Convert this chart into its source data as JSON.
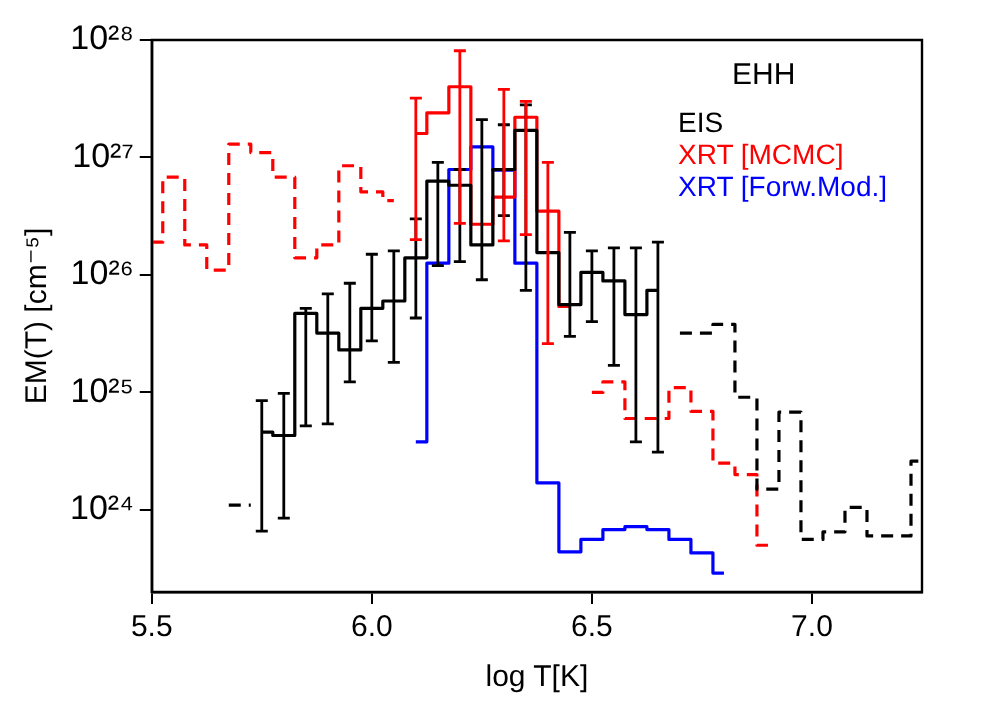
{
  "chart_data": {
    "type": "step",
    "xlabel": "log T[K]",
    "ylabel": "EM(T) [cm⁻⁵]",
    "annotations": [
      "EHH"
    ],
    "log": "y",
    "grid": false,
    "legend": "top right",
    "marker": "none",
    "xlim": [
      5.5,
      7.25
    ],
    "xticks": [
      5.5,
      {
        "value": 6,
        "label": "6.0"
      },
      6.5,
      {
        "value": 7,
        "label": "7.0"
      }
    ],
    "ylim": [
      2e+23,
      1e+28
    ],
    "yticks": [
      {
        "value": 1e+24,
        "label": "10²⁴"
      },
      {
        "value": 1e+25,
        "label": "10²⁵"
      },
      {
        "value": 1e+26,
        "label": "10²⁶"
      },
      {
        "value": 1e+27,
        "label": "10²⁷"
      },
      {
        "value": 1e+28,
        "label": "10²⁸"
      }
    ],
    "series": [
      {
        "name": "EIS",
        "color": "#000000",
        "line_style": "solid",
        "x": [
          5.75,
          5.8,
          5.85,
          5.9,
          5.95,
          6.0,
          6.05,
          6.1,
          6.15,
          6.2,
          6.25,
          6.3,
          6.35,
          6.4,
          6.45,
          6.5,
          6.55,
          6.6,
          6.65
        ],
        "values": [
          4.6e+24,
          4.3e+24,
          4.7e+25,
          3.2e+25,
          2.3e+25,
          5.2e+25,
          6e+25,
          1.4e+26,
          6.3e+26,
          5.8e+26,
          1.8e+26,
          7.9e+26,
          1.7e+27,
          1.55e+26,
          5.6e+25,
          1.05e+26,
          8.9e+25,
          4.6e+25,
          7.4e+25
        ],
        "errors": [
          [
            6.6e+23,
            8.5e+24
          ],
          [
            8.5e+23,
            9.8e+24
          ],
          [
            5.2e+24,
            5.2e+25
          ],
          [
            5.4e+24,
            6.9e+25
          ],
          [
            1.23e+25,
            8.5e+25
          ],
          [
            2.75e+25,
            1.5e+26
          ],
          [
            1.8e+25,
            1.6e+26
          ],
          [
            4.3e+25,
            3e+26
          ],
          [
            1.2e+26,
            9.1e+26
          ],
          [
            1.3e+26,
            7.9e+26
          ],
          [
            9.1e+25,
            2.1e+27
          ],
          [
            3.2e+26,
            1.9e+27
          ],
          [
            7.4e+25,
            2.8e+27
          ],
          null,
          [
            3e+25,
            2.3e+26
          ],
          [
            4e+25,
            1.6e+26
          ],
          [
            1.7e+25,
            1.7e+26
          ],
          [
            3.8e+24,
            1.7e+26
          ],
          [
            3.1e+24,
            1.9e+26
          ]
        ]
      },
      {
        "type": "line",
        "color": "#000000",
        "line_style": "dashed",
        "x": [
          5.675,
          5.725
        ],
        "values": [
          1.1e+24,
          1.1e+24
        ]
      },
      {
        "color": "#000000",
        "line_style": "dashed",
        "x": [
          6.7,
          6.75,
          6.8,
          6.85,
          6.9,
          6.95,
          7.0,
          7.05,
          7.1,
          7.15,
          7.2,
          7.25
        ],
        "values": [
          3.2e+25,
          3.2e+25,
          3.8e+25,
          9.1e+24,
          1.5e+24,
          6.8e+24,
          5.6e+23,
          6.5e+23,
          1.05e+24,
          6e+23,
          6e+23,
          2.6e+24
        ]
      },
      {
        "name": "XRT [MCMC]",
        "color": "#ff0000",
        "line_style": "solid",
        "x": [
          6.1,
          6.15,
          6.2,
          6.25,
          6.3,
          6.35,
          6.4,
          6.45
        ],
        "values": [
          1.6e+27,
          2.4e+27,
          4e+27,
          2.7e+26,
          4.6e+26,
          2.2e+27,
          3.5e+26,
          5.4e+25
        ],
        "errors": [
          [
            2e+26,
            3.2e+27
          ],
          null,
          [
            2.75e+26,
            8.1e+27
          ],
          null,
          [
            1.95e+26,
            3.8e+27
          ],
          [
            2.2e+26,
            3e+27
          ],
          [
            2.6e+25,
            9.1e+26
          ],
          null
        ]
      },
      {
        "color": "#ff0000",
        "line_style": "dashed",
        "x": [
          5.5,
          5.55,
          5.6,
          5.65,
          5.7,
          5.75,
          5.8,
          5.85,
          5.9,
          5.95,
          6.0,
          6.05
        ],
        "values": [
          1.9e+26,
          6.8e+26,
          1.8e+26,
          1.1e+26,
          1.3e+27,
          1.1e+27,
          6.8e+26,
          1.4e+26,
          1.8e+26,
          8.5e+26,
          5.1e+26,
          4.3e+26
        ]
      },
      {
        "color": "#ff0000",
        "line_style": "dashed",
        "x": [
          6.5,
          6.55,
          6.6,
          6.65,
          6.7,
          6.75,
          6.8,
          6.85,
          6.9
        ],
        "values": [
          1e+25,
          1.23e+25,
          6e+24,
          6e+24,
          1.1e+25,
          6.9e+24,
          2.5e+24,
          2e+24,
          5e+23
        ]
      },
      {
        "name": "XRT [Forw.Mod.]",
        "color": "#0000ff",
        "line_style": "solid",
        "x": [
          6.1,
          6.15,
          6.2,
          6.25,
          6.3,
          6.35,
          6.4,
          6.45,
          6.5,
          6.55,
          6.6,
          6.65,
          6.7,
          6.75,
          6.8
        ],
        "values": [
          3.8e+24,
          1.26e+26,
          7.9e+26,
          1.23e+27,
          7.8e+26,
          1.26e+26,
          1.7e+24,
          4.4e+23,
          5.6e+23,
          6.8e+23,
          7.2e+23,
          6.8e+23,
          5.6e+23,
          4.3e+23,
          2.9e+23
        ]
      }
    ]
  }
}
